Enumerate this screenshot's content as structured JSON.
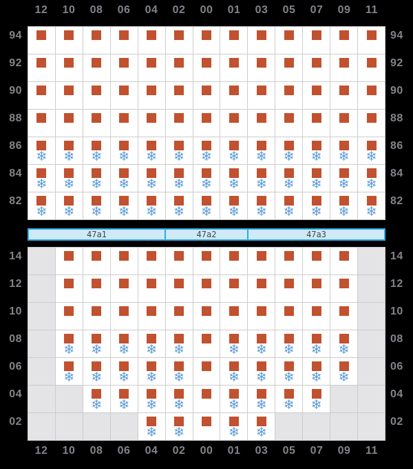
{
  "colors": {
    "background": "#000000",
    "grid_line": "#cccccc",
    "cell_white": "#ffffff",
    "cell_gray": "#e4e4e6",
    "square": "#c1512f",
    "snowflake": "#5b9bd5",
    "axis_label": "#83838b",
    "bar_fill": "#cfe9f7",
    "bar_border": "#2bace3",
    "bar_text": "#454545"
  },
  "icons": {
    "snowflake_glyph": "❄"
  },
  "chart_data": {
    "type": "heatmap",
    "title": "",
    "x_labels": [
      "12",
      "10",
      "08",
      "06",
      "04",
      "02",
      "00",
      "01",
      "03",
      "05",
      "07",
      "09",
      "11"
    ],
    "symbol_key": {
      "S": "orange-square",
      "W": "orange-square-with-snowflake",
      "E": "empty-gray-cell"
    },
    "panels": [
      {
        "name": "upper",
        "y_labels": [
          "94",
          "92",
          "90",
          "88",
          "86",
          "84",
          "82"
        ],
        "rows": [
          "SSSSSSSSSSSSS",
          "SSSSSSSSSSSSS",
          "SSSSSSSSSSSSS",
          "SSSSSSSSSSSSS",
          "WWWWWWWWWWWWW",
          "WWWWWWWWWWWWW",
          "WWWWWWWWWWWWW"
        ]
      },
      {
        "name": "lower",
        "y_labels": [
          "14",
          "12",
          "10",
          "08",
          "06",
          "04",
          "02"
        ],
        "rows": [
          "ESSSSSSSSSSSE",
          "ESSSSSSSSSSSE",
          "ESSSSSSSSSSSE",
          "EWWWWWSWWWWWE",
          "EWWWWWSWWWWWE",
          "EEWWWWSWWWWEE",
          "EEEEWWSWWEEEE"
        ]
      }
    ],
    "divider_segments": [
      {
        "label": "47a1",
        "col_span": 5
      },
      {
        "label": "47a2",
        "col_span": 3
      },
      {
        "label": "47a3",
        "col_span": 5
      }
    ]
  }
}
